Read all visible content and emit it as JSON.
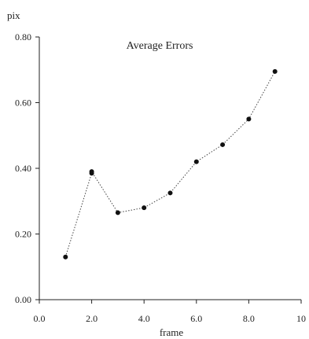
{
  "chart_data": {
    "type": "line",
    "title": "Average Errors",
    "xlabel": "frame",
    "ylabel": "pix",
    "xlim": [
      0,
      10
    ],
    "ylim": [
      0,
      0.8
    ],
    "x_ticks": [
      "0.0",
      "2.0",
      "4.0",
      "6.0",
      "8.0",
      "10"
    ],
    "y_ticks": [
      "0.00",
      "0.20",
      "0.40",
      "0.60",
      "0.80"
    ],
    "grid": false,
    "line_style": "dotted",
    "series": [
      {
        "x": [
          1,
          2,
          2,
          3,
          4,
          5,
          6,
          7,
          8,
          9
        ],
        "y": [
          0.13,
          0.385,
          0.39,
          0.265,
          0.28,
          0.325,
          0.42,
          0.472,
          0.55,
          0.695
        ]
      }
    ],
    "colors": {
      "line": "#444444",
      "marker": "#111111",
      "axis": "#222222"
    }
  }
}
